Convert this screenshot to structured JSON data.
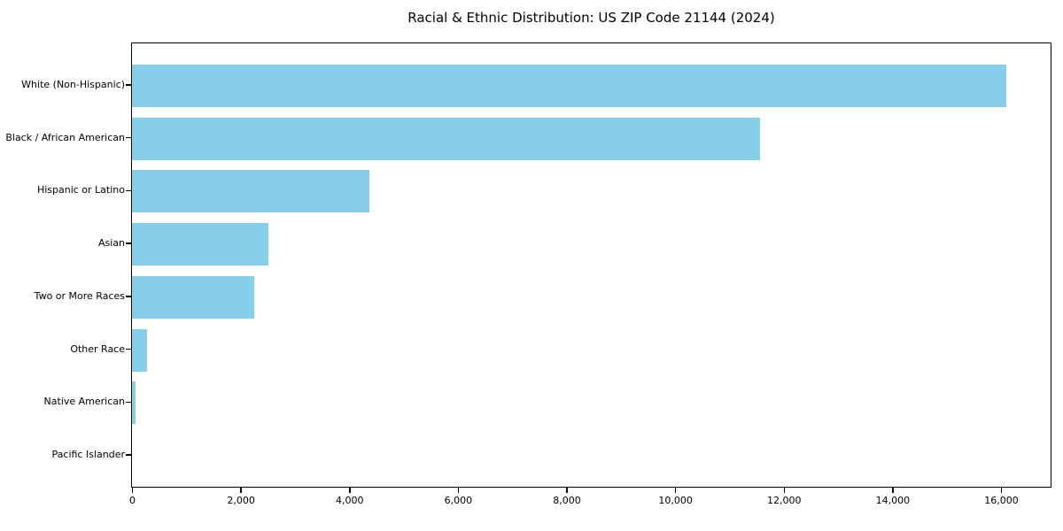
{
  "chart_data": {
    "type": "bar",
    "orientation": "horizontal",
    "title": "Racial & Ethnic Distribution: US ZIP Code 21144 (2024)",
    "categories": [
      "White (Non-Hispanic)",
      "Black / African American",
      "Hispanic or Latino",
      "Asian",
      "Two or More Races",
      "Other Race",
      "Native American",
      "Pacific Islander"
    ],
    "values": [
      16090,
      11560,
      4370,
      2510,
      2250,
      280,
      65,
      0
    ],
    "xlabel": "",
    "ylabel": "",
    "xlim": [
      0,
      16896
    ],
    "xticks": [
      0,
      2000,
      4000,
      6000,
      8000,
      10000,
      12000,
      14000,
      16000
    ],
    "xtick_labels": [
      "0",
      "2,000",
      "4,000",
      "6,000",
      "8,000",
      "10,000",
      "12,000",
      "14,000",
      "16,000"
    ],
    "grid": false,
    "legend": false,
    "bar_color": "#87CEEB",
    "spine_color": "#000000",
    "text_color": "#000000",
    "background_color": "#ffffff"
  }
}
